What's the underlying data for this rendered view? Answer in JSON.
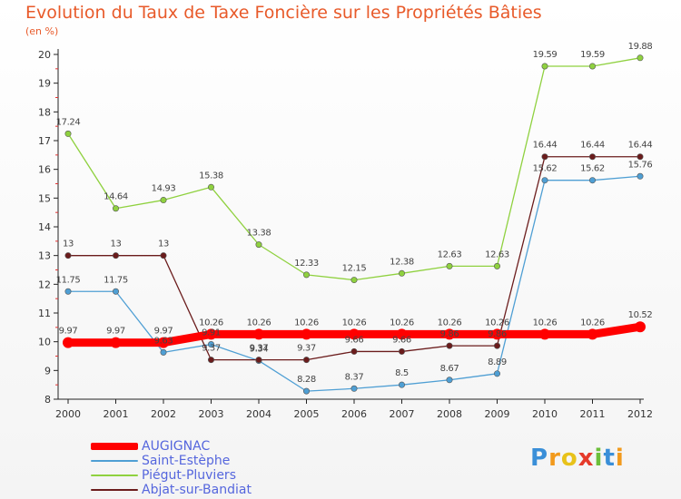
{
  "page": {
    "title": "Evolution du Taux de Taxe Foncière sur les Propriétés Bâties",
    "subtitle": "(en %)"
  },
  "logo": {
    "text": "Proxiti",
    "letters": [
      "P",
      "r",
      "o",
      "x",
      "i",
      "t",
      "i"
    ]
  },
  "chart_data": {
    "type": "line",
    "title": "Evolution du Taux de Taxe Foncière sur les Propriétés Bâties",
    "ylabel": "(en %)",
    "xlabel": "",
    "ylim": [
      8,
      20
    ],
    "yticks": [
      8,
      9,
      10,
      11,
      12,
      13,
      14,
      15,
      16,
      17,
      18,
      19,
      20
    ],
    "categories": [
      "2000",
      "2001",
      "2002",
      "2003",
      "2004",
      "2005",
      "2006",
      "2007",
      "2008",
      "2009",
      "2010",
      "2011",
      "2012"
    ],
    "grid": false,
    "legend": "bottom-left",
    "series": [
      {
        "name": "AUGIGNAC",
        "color": "#ff0000",
        "values": [
          9.97,
          9.97,
          9.97,
          10.26,
          10.26,
          10.26,
          10.26,
          10.26,
          10.26,
          10.26,
          10.26,
          10.26,
          10.52
        ]
      },
      {
        "name": "Saint-Estèphe",
        "color": "#4f9fd4",
        "values": [
          11.75,
          11.75,
          9.63,
          9.91,
          9.34,
          8.28,
          8.37,
          8.5,
          8.67,
          8.89,
          15.62,
          15.62,
          15.76
        ]
      },
      {
        "name": "Piégut-Pluviers",
        "color": "#8fd13f",
        "values": [
          17.24,
          14.64,
          14.93,
          15.38,
          13.38,
          12.33,
          12.15,
          12.38,
          12.63,
          12.63,
          19.59,
          19.59,
          19.88
        ]
      },
      {
        "name": "Abjat-sur-Bandiat",
        "color": "#6b1c1c",
        "values": [
          13,
          13,
          13,
          9.37,
          9.37,
          9.37,
          9.66,
          9.66,
          9.86,
          9.86,
          16.44,
          16.44,
          16.44
        ]
      }
    ],
    "point_labels": {
      "AUGIGNAC": [
        "9.97",
        "9.97",
        "9.97",
        "10.26",
        "10.26",
        "10.26",
        "10.26",
        "10.26",
        "10.26",
        "10.26",
        "10.26",
        "10.26",
        "10.52"
      ],
      "Saint-Estèphe": [
        "11.75",
        "11.75",
        "9.63",
        "9.91",
        "9.34",
        "8.28",
        "8.37",
        "8.5",
        "8.67",
        "8.89",
        "15.62",
        "15.62",
        "15.76"
      ],
      "Piégut-Pluviers": [
        "17.24",
        "14.64",
        "14.93",
        "15.38",
        "13.38",
        "12.33",
        "12.15",
        "12.38",
        "12.63",
        "12.63",
        "19.59",
        "19.59",
        "19.88"
      ],
      "Abjat-sur-Bandiat": [
        "13",
        "13",
        "13",
        "9.37",
        "9.37",
        "9.37",
        "9.66",
        "9.66",
        "9.86",
        "9.86",
        "16.44",
        "16.44",
        "16.44"
      ]
    }
  }
}
